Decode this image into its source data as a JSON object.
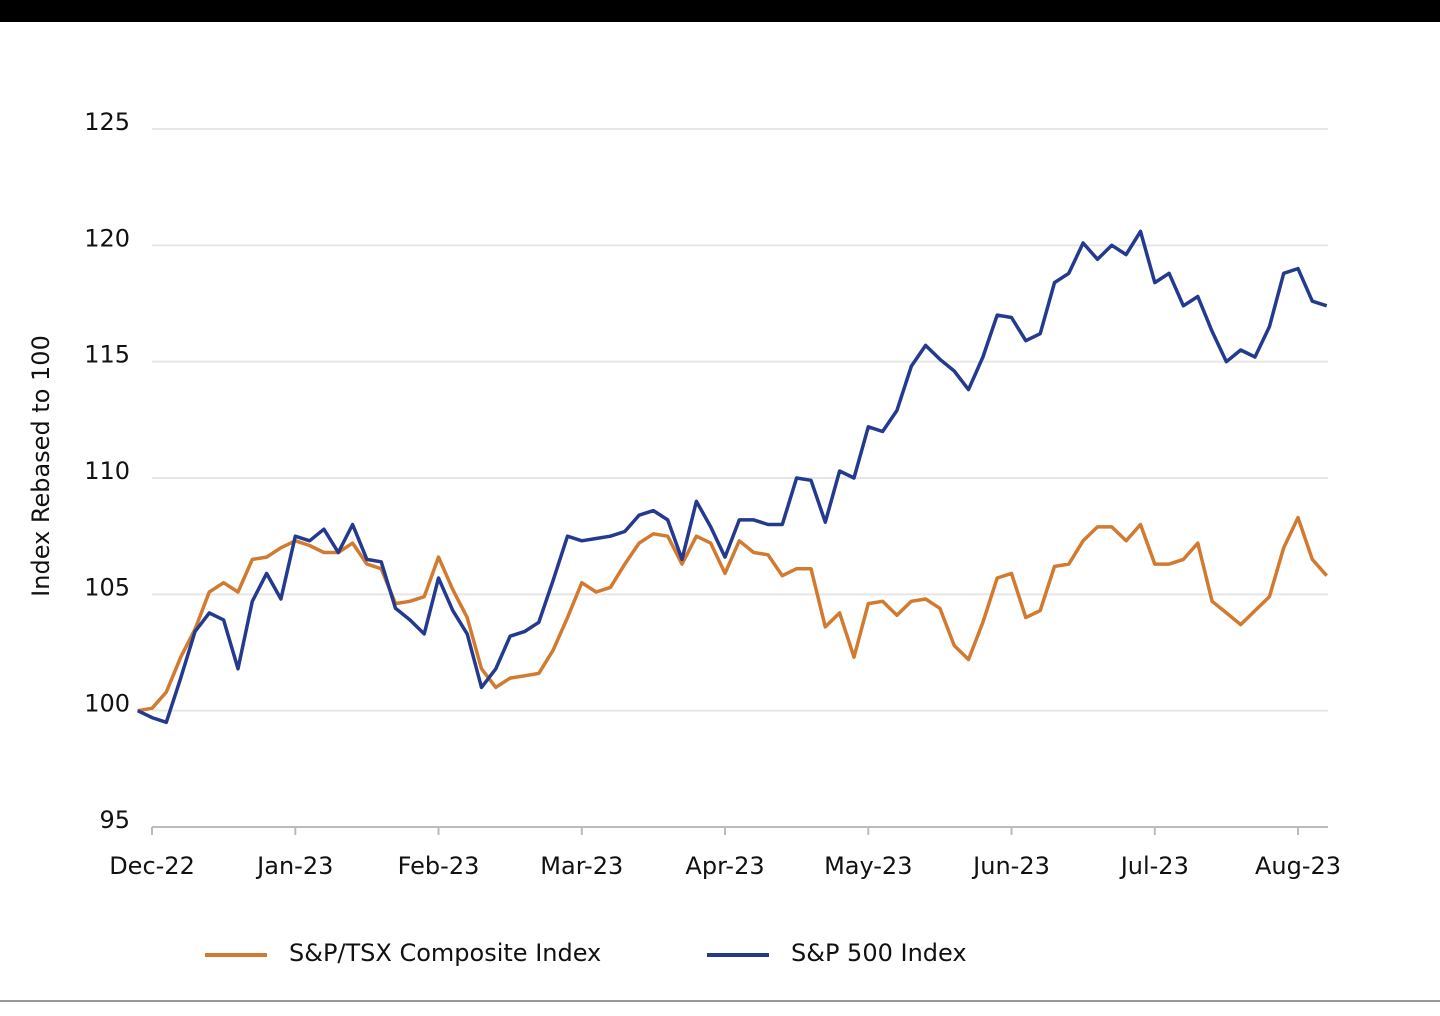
{
  "chart_data": {
    "type": "line",
    "y_label": "Index Rebased to 100",
    "categories": [
      null,
      "Dec-22",
      null,
      null,
      null,
      null,
      null,
      null,
      null,
      null,
      null,
      "Jan-23",
      null,
      null,
      null,
      null,
      null,
      null,
      null,
      null,
      null,
      "Feb-23",
      null,
      null,
      null,
      null,
      null,
      null,
      null,
      null,
      null,
      "Mar-23",
      null,
      null,
      null,
      null,
      null,
      null,
      null,
      null,
      null,
      "Apr-23",
      null,
      null,
      null,
      null,
      null,
      null,
      null,
      null,
      null,
      "May-23",
      null,
      null,
      null,
      null,
      null,
      null,
      null,
      null,
      null,
      "Jun-23",
      null,
      null,
      null,
      null,
      null,
      null,
      null,
      null,
      null,
      "Jul-23",
      null,
      null,
      null,
      null,
      null,
      null,
      null,
      null,
      null,
      "Aug-23",
      null,
      null
    ],
    "series": [
      {
        "name": "S&P/TSX Composite Index",
        "color": "#d27a30",
        "values": [
          100,
          100.1,
          100.8,
          102.3,
          103.5,
          105.1,
          105.5,
          105.1,
          106.5,
          106.6,
          107,
          107.3,
          107.1,
          106.8,
          106.8,
          107.2,
          106.3,
          106.1,
          104.6,
          104.7,
          104.9,
          106.6,
          105.2,
          104,
          101.8,
          101,
          101.4,
          101.5,
          101.6,
          102.6,
          104,
          105.5,
          105.1,
          105.3,
          106.3,
          107.2,
          107.6,
          107.5,
          106.3,
          107.5,
          107.2,
          105.9,
          107.3,
          106.8,
          106.7,
          105.8,
          106.1,
          106.1,
          103.6,
          104.2,
          102.3,
          104.6,
          104.7,
          104.1,
          104.7,
          104.8,
          104.4,
          102.8,
          102.2,
          103.8,
          105.7,
          105.9,
          104,
          104.3,
          106.2,
          106.3,
          107.3,
          107.9,
          107.9,
          107.3,
          108,
          106.3,
          106.3,
          106.5,
          107.2,
          104.7,
          104.2,
          103.7,
          104.3,
          104.9,
          107,
          108.3,
          106.5,
          105.8
        ]
      },
      {
        "name": "S&P 500 Index",
        "color": "#243a8f",
        "values": [
          100,
          99.7,
          99.5,
          101.4,
          103.4,
          104.2,
          103.9,
          101.8,
          104.7,
          105.9,
          104.8,
          107.5,
          107.3,
          107.8,
          106.8,
          108,
          106.5,
          106.4,
          104.4,
          103.9,
          103.3,
          105.7,
          104.3,
          103.3,
          101,
          101.8,
          103.2,
          103.4,
          103.8,
          105.6,
          107.5,
          107.3,
          107.4,
          107.5,
          107.7,
          108.4,
          108.6,
          108.2,
          106.5,
          109,
          107.9,
          106.6,
          108.2,
          108.2,
          108,
          108,
          110,
          109.9,
          108.1,
          110.3,
          110,
          112.2,
          112,
          112.9,
          114.8,
          115.7,
          115.1,
          114.6,
          113.8,
          115.2,
          117,
          116.9,
          115.9,
          116.2,
          118.4,
          118.8,
          120.1,
          119.4,
          120,
          119.6,
          120.6,
          118.4,
          118.8,
          117.4,
          117.8,
          116.3,
          115,
          115.5,
          115.2,
          116.5,
          118.8,
          119,
          117.6,
          117.4
        ]
      }
    ],
    "ylim": [
      95,
      125
    ],
    "yticks": [
      95,
      100,
      105,
      110,
      115,
      120,
      125
    ],
    "grid": true
  }
}
